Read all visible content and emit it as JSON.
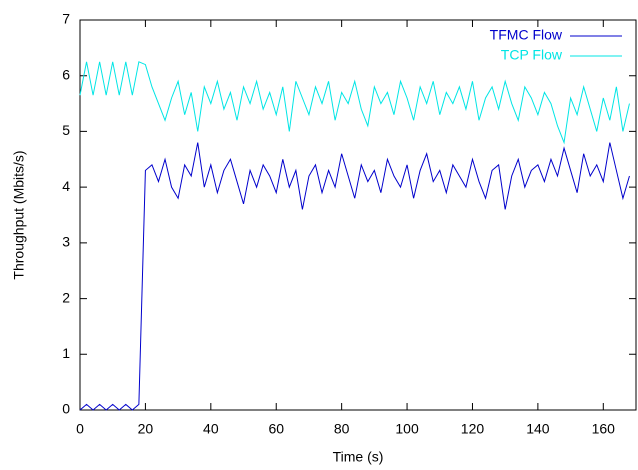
{
  "chart_data": {
    "type": "line",
    "x_label": "Time (s)",
    "y_label": "Throughput (Mbits/s)",
    "x": [
      0,
      2,
      4,
      6,
      8,
      10,
      12,
      14,
      16,
      18,
      20,
      22,
      24,
      26,
      28,
      30,
      32,
      34,
      36,
      38,
      40,
      42,
      44,
      46,
      48,
      50,
      52,
      54,
      56,
      58,
      60,
      62,
      64,
      66,
      68,
      70,
      72,
      74,
      76,
      78,
      80,
      82,
      84,
      86,
      88,
      90,
      92,
      94,
      96,
      98,
      100,
      102,
      104,
      106,
      108,
      110,
      112,
      114,
      116,
      118,
      120,
      122,
      124,
      126,
      128,
      130,
      132,
      134,
      136,
      138,
      140,
      142,
      144,
      146,
      148,
      150,
      152,
      154,
      156,
      158,
      160,
      162,
      164,
      166,
      168
    ],
    "series": [
      {
        "name": "TFMC Flow",
        "color": "#0000cc",
        "values": [
          0,
          0.1,
          0,
          0.1,
          0,
          0.1,
          0,
          0.1,
          0,
          0.1,
          4.3,
          4.4,
          4.1,
          4.5,
          4.0,
          3.8,
          4.4,
          4.2,
          4.8,
          4.0,
          4.4,
          3.9,
          4.3,
          4.5,
          4.1,
          3.7,
          4.3,
          4.0,
          4.4,
          4.2,
          3.9,
          4.5,
          4.0,
          4.3,
          3.6,
          4.2,
          4.4,
          3.9,
          4.3,
          4.0,
          4.6,
          4.2,
          3.8,
          4.4,
          4.1,
          4.3,
          3.9,
          4.5,
          4.2,
          4.0,
          4.4,
          3.8,
          4.3,
          4.6,
          4.1,
          4.3,
          3.9,
          4.4,
          4.2,
          4.0,
          4.5,
          4.1,
          3.8,
          4.3,
          4.4,
          3.6,
          4.2,
          4.5,
          4.0,
          4.3,
          4.4,
          4.1,
          4.5,
          4.2,
          4.7,
          4.3,
          3.9,
          4.6,
          4.2,
          4.4,
          4.1,
          4.8,
          4.3,
          3.8,
          4.2
        ]
      },
      {
        "name": "TCP Flow",
        "color": "#00e5e5",
        "values": [
          5.65,
          6.25,
          5.65,
          6.25,
          5.65,
          6.25,
          5.65,
          6.25,
          5.65,
          6.25,
          6.2,
          5.8,
          5.5,
          5.2,
          5.6,
          5.9,
          5.3,
          5.7,
          5.0,
          5.8,
          5.5,
          5.9,
          5.4,
          5.7,
          5.2,
          5.8,
          5.5,
          5.9,
          5.4,
          5.7,
          5.3,
          5.8,
          5.0,
          5.9,
          5.6,
          5.3,
          5.8,
          5.5,
          5.9,
          5.2,
          5.7,
          5.5,
          5.9,
          5.4,
          5.1,
          5.8,
          5.5,
          5.7,
          5.3,
          5.9,
          5.6,
          5.2,
          5.8,
          5.5,
          5.9,
          5.3,
          5.7,
          5.5,
          5.8,
          5.4,
          5.9,
          5.2,
          5.6,
          5.8,
          5.4,
          5.9,
          5.5,
          5.2,
          5.8,
          5.6,
          5.3,
          5.7,
          5.5,
          5.1,
          4.8,
          5.6,
          5.3,
          5.8,
          5.4,
          5.0,
          5.6,
          5.2,
          5.8,
          5.0,
          5.5
        ]
      }
    ],
    "xlim": [
      0,
      170
    ],
    "ylim": [
      0,
      7
    ],
    "xticks": [
      0,
      20,
      40,
      60,
      80,
      100,
      120,
      140,
      160
    ],
    "yticks": [
      0,
      1,
      2,
      3,
      4,
      5,
      6,
      7
    ]
  }
}
